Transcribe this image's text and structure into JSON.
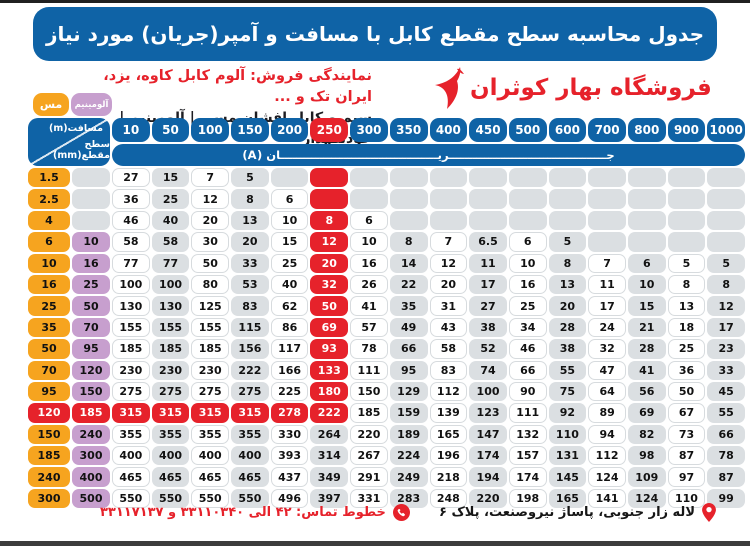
{
  "header": {
    "title": "جدول محاسبه سطح مقطع کابل با مسافت و آمپر(جریان) مورد نیاز",
    "dealer_line": "نمایندگی فروش: آلوم کابل کاوه، یزد، ایران تک و ...",
    "products_line": "سیم و کابل افشان مسی | آلومینیم | خودنگهدار",
    "store_name": "فروشگاه بهار کوثران"
  },
  "legend": {
    "copper_label": "مس",
    "aluminum_label": "آلومینیم"
  },
  "table": {
    "corner_top": "مسافت(m)",
    "corner_bottom": "سطح مقطع(mm)",
    "current_label": "جــــــــــــــــــــــــــــــــــــــــریــــــــــــــــــــــــــــــــــــــــان (A)",
    "distance_columns": [
      "10",
      "50",
      "100",
      "150",
      "200",
      "250",
      "300",
      "350",
      "400",
      "450",
      "500",
      "600",
      "700",
      "800",
      "900",
      "1000"
    ],
    "highlight_column": "250",
    "highlight_row_copper": "120",
    "rows": [
      {
        "copper": "1.5",
        "aluminum": "",
        "amps": [
          "27",
          "15",
          "7",
          "5",
          "",
          "",
          "",
          "",
          "",
          "",
          "",
          "",
          "",
          "",
          "",
          ""
        ]
      },
      {
        "copper": "2.5",
        "aluminum": "",
        "amps": [
          "36",
          "25",
          "12",
          "8",
          "6",
          "",
          "",
          "",
          "",
          "",
          "",
          "",
          "",
          "",
          "",
          ""
        ]
      },
      {
        "copper": "4",
        "aluminum": "",
        "amps": [
          "46",
          "40",
          "20",
          "13",
          "10",
          "8",
          "6",
          "",
          "",
          "",
          "",
          "",
          "",
          "",
          "",
          ""
        ]
      },
      {
        "copper": "6",
        "aluminum": "10",
        "amps": [
          "58",
          "58",
          "30",
          "20",
          "15",
          "12",
          "10",
          "8",
          "7",
          "6.5",
          "6",
          "5",
          "",
          "",
          "",
          ""
        ]
      },
      {
        "copper": "10",
        "aluminum": "16",
        "amps": [
          "77",
          "77",
          "50",
          "33",
          "25",
          "20",
          "16",
          "14",
          "12",
          "11",
          "10",
          "8",
          "7",
          "6",
          "5",
          "5"
        ]
      },
      {
        "copper": "16",
        "aluminum": "25",
        "amps": [
          "100",
          "100",
          "80",
          "53",
          "40",
          "32",
          "26",
          "22",
          "20",
          "17",
          "16",
          "13",
          "11",
          "10",
          "8",
          "8"
        ]
      },
      {
        "copper": "25",
        "aluminum": "50",
        "amps": [
          "130",
          "130",
          "125",
          "83",
          "62",
          "50",
          "41",
          "35",
          "31",
          "27",
          "25",
          "20",
          "17",
          "15",
          "13",
          "12"
        ]
      },
      {
        "copper": "35",
        "aluminum": "70",
        "amps": [
          "155",
          "155",
          "155",
          "115",
          "86",
          "69",
          "57",
          "49",
          "43",
          "38",
          "34",
          "28",
          "24",
          "21",
          "18",
          "17"
        ]
      },
      {
        "copper": "50",
        "aluminum": "95",
        "amps": [
          "185",
          "185",
          "185",
          "156",
          "117",
          "93",
          "78",
          "66",
          "58",
          "52",
          "46",
          "38",
          "32",
          "28",
          "25",
          "23"
        ]
      },
      {
        "copper": "70",
        "aluminum": "120",
        "amps": [
          "230",
          "230",
          "230",
          "222",
          "166",
          "133",
          "111",
          "95",
          "83",
          "74",
          "66",
          "55",
          "47",
          "41",
          "36",
          "33"
        ]
      },
      {
        "copper": "95",
        "aluminum": "150",
        "amps": [
          "275",
          "275",
          "275",
          "275",
          "225",
          "180",
          "150",
          "129",
          "112",
          "100",
          "90",
          "75",
          "64",
          "56",
          "50",
          "45"
        ]
      },
      {
        "copper": "120",
        "aluminum": "185",
        "amps": [
          "315",
          "315",
          "315",
          "315",
          "278",
          "222",
          "185",
          "159",
          "139",
          "123",
          "111",
          "92",
          "89",
          "69",
          "67",
          "55"
        ]
      },
      {
        "copper": "150",
        "aluminum": "240",
        "amps": [
          "355",
          "355",
          "355",
          "355",
          "330",
          "264",
          "220",
          "189",
          "165",
          "147",
          "132",
          "110",
          "94",
          "82",
          "73",
          "66"
        ]
      },
      {
        "copper": "185",
        "aluminum": "300",
        "amps": [
          "400",
          "400",
          "400",
          "400",
          "393",
          "314",
          "267",
          "224",
          "196",
          "174",
          "157",
          "131",
          "112",
          "98",
          "87",
          "78"
        ]
      },
      {
        "copper": "240",
        "aluminum": "400",
        "amps": [
          "465",
          "465",
          "465",
          "465",
          "437",
          "349",
          "291",
          "249",
          "218",
          "194",
          "174",
          "145",
          "124",
          "109",
          "97",
          "87"
        ]
      },
      {
        "copper": "300",
        "aluminum": "500",
        "amps": [
          "550",
          "550",
          "550",
          "550",
          "496",
          "397",
          "331",
          "283",
          "248",
          "220",
          "198",
          "165",
          "141",
          "124",
          "110",
          "99"
        ]
      }
    ]
  },
  "footer": {
    "address": "لاله زار جنوبی، پاساژ نیروصنعت، پلاک ۶",
    "phone_line": "خطوط تماس: ۴۲ الی ۳۳۱۱۰۳۴۰ و ۳۳۱۱۷۱۳۷"
  },
  "colors": {
    "blue": "#0f63a6",
    "red": "#e6222b",
    "orange": "#f6a41f",
    "purple": "#c79fce",
    "cell_gray": "#dbdfe2"
  }
}
